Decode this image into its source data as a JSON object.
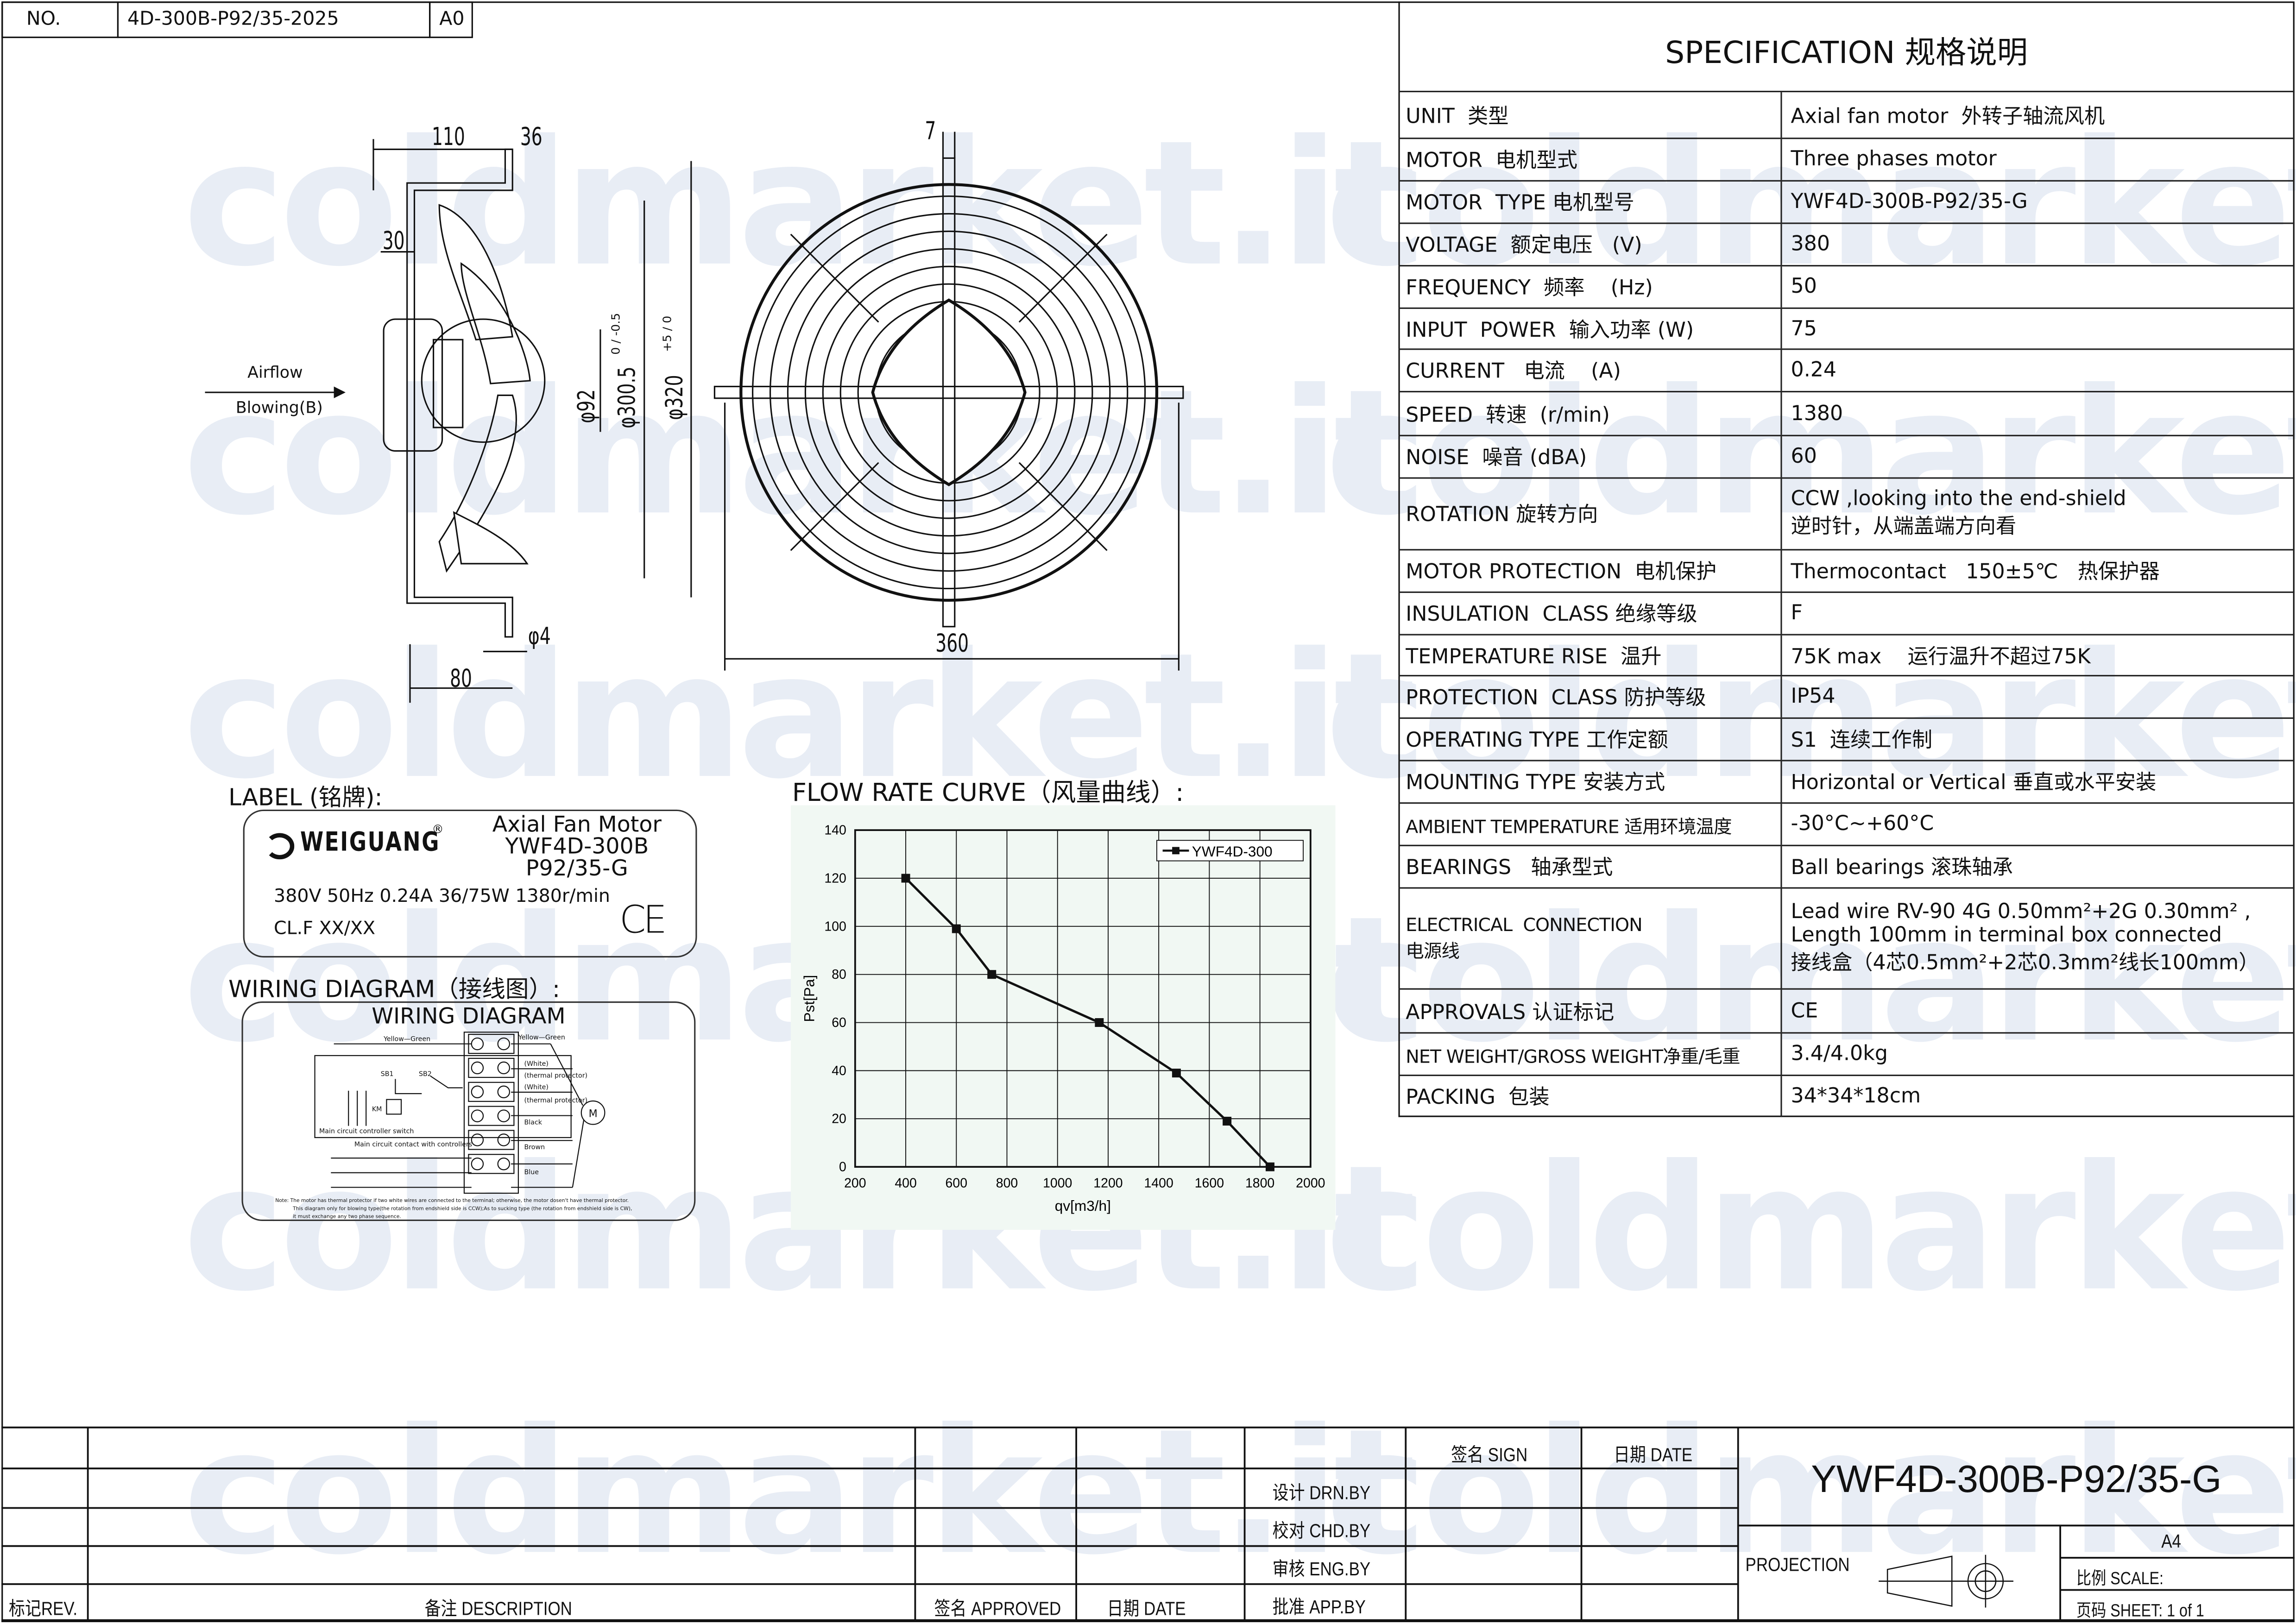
{
  "watermark": "coldmarket.it",
  "header": {
    "no_label": "NO.",
    "drawing_no": "4D-300B-P92/35-2025",
    "revision": "A0"
  },
  "spec": {
    "title": "SPECIFICATION 规格说明",
    "rows": [
      {
        "label": "UNIT  类型",
        "value": [
          "Axial fan motor  外转子轴流风机"
        ]
      },
      {
        "label": "MOTOR  电机型式",
        "value": [
          "Three phases motor"
        ]
      },
      {
        "label": "MOTOR  TYPE 电机型号",
        "value": [
          "YWF4D-300B-P92/35-G"
        ]
      },
      {
        "label": "VOLTAGE  额定电压   (V)",
        "value": [
          "380"
        ]
      },
      {
        "label": "FREQUENCY  频率    (Hz)",
        "value": [
          "50"
        ]
      },
      {
        "label": "INPUT  POWER  输入功率 (W)",
        "value": [
          "75"
        ]
      },
      {
        "label": "CURRENT   电流    (A)",
        "value": [
          "0.24"
        ]
      },
      {
        "label": "SPEED  转速  (r/min)",
        "value": [
          "1380"
        ]
      },
      {
        "label": "NOISE  噪音 (dBA)",
        "value": [
          "60"
        ]
      },
      {
        "label": "ROTATION 旋转方向",
        "value": [
          "CCW ,looking into the end-shield",
          "逆时针，从端盖端方向看"
        ]
      },
      {
        "label": "MOTOR PROTECTION  电机保护",
        "value": [
          "Thermocontact   150±5℃   热保护器"
        ]
      },
      {
        "label": "INSULATION  CLASS 绝缘等级",
        "value": [
          "F"
        ]
      },
      {
        "label": "TEMPERATURE RISE  温升",
        "value": [
          "75K max    运行温升不超过75K"
        ]
      },
      {
        "label": "PROTECTION  CLASS 防护等级",
        "value": [
          "IP54"
        ]
      },
      {
        "label": "OPERATING TYPE 工作定额",
        "value": [
          "S1  连续工作制"
        ]
      },
      {
        "label": "MOUNTING TYPE 安装方式",
        "value": [
          "Horizontal or Vertical 垂直或水平安装"
        ]
      },
      {
        "label": "AMBIENT TEMPERATURE 适用环境温度",
        "value": [
          "-30°C~+60°C"
        ]
      },
      {
        "label": "BEARINGS   轴承型式",
        "value": [
          "Ball bearings 滚珠轴承"
        ]
      },
      {
        "label": "ELECTRICAL  CONNECTION\n电源线",
        "value": [
          "Lead wire RV-90 4G 0.50mm²+2G 0.30mm² ,",
          "Length 100mm in terminal box connected",
          "接线盒（4芯0.5mm²+2芯0.3mm²线长100mm）"
        ]
      },
      {
        "label": "APPROVALS 认证标记",
        "value": [
          "CE"
        ]
      },
      {
        "label": "NET WEIGHT/GROSS WEIGHT净重/毛重",
        "value": [
          "3.4/4.0kg"
        ]
      },
      {
        "label": "PACKING  包装",
        "value": [
          "34*34*18cm"
        ]
      }
    ]
  },
  "drawing": {
    "side_dims": {
      "d110": "110",
      "d36": "36",
      "d30": "30",
      "d92": "φ92",
      "d300": "φ300.5",
      "d300_tol": "0 / -0.5",
      "d320": "φ320",
      "d320_tol": "+5 / 0",
      "d4": "φ4",
      "d80": "80"
    },
    "airflow": "Airflow",
    "blowing": "Blowing(B)",
    "front_dims": {
      "d7": "7",
      "d360": "360"
    }
  },
  "label_section": {
    "heading": "LABEL (铭牌):",
    "brand": "WEIGUANG",
    "registered": "®",
    "line1": "Axial Fan Motor",
    "line2": "YWF4D-300B",
    "line3": "P92/35-G",
    "ratings": "380V 50Hz 0.24A 36/75W 1380r/min",
    "class": "CL.F XX/XX",
    "ce": "CE"
  },
  "wiring": {
    "heading": "WIRING DIAGRAM（接线图）:",
    "title": "WIRING DIAGRAM",
    "left_yg": "Yellow—Green",
    "right_yg": "Yellow—Green",
    "white1": "(White)",
    "thermal1": "(thermal protector)",
    "white2": "(White)",
    "thermal2": "(thermal protector)",
    "black": "Black",
    "brown": "Brown",
    "blue": "Blue",
    "sb1": "SB1",
    "sb2": "SB2",
    "km": "KM",
    "motor": "M",
    "main_circuit": "Main circuit  controller switch",
    "main_contact": "Main circuit contact with controllers",
    "note": [
      "Note:  The motor has thermal protector if two white wires are connected to the terminal; otherwise, the motor dosen't have thermal protector.",
      "This diagram only for blowing type(the rotation from endshield side is CCW);As to sucking type (the rotation from endshield side is CW),",
      "it must exchange any two phase sequence."
    ]
  },
  "flow_section": {
    "heading": "FLOW RATE CURVE（风量曲线）:"
  },
  "chart_data": {
    "type": "line",
    "title": "",
    "xlabel": "qv[m3/h]",
    "ylabel": "Pst[Pa]",
    "xlim": [
      200,
      2000
    ],
    "ylim": [
      0,
      140
    ],
    "xticks": [
      200,
      400,
      600,
      800,
      1000,
      1200,
      1400,
      1600,
      1800,
      2000
    ],
    "yticks": [
      0,
      20,
      40,
      60,
      80,
      100,
      120,
      140
    ],
    "grid": true,
    "legend": "top-right",
    "background": "#f1f8f3",
    "series": [
      {
        "name": "YWF4D-300",
        "x": [
          400,
          600,
          740,
          1165,
          1470,
          1670,
          1840
        ],
        "y": [
          120,
          99,
          80,
          60,
          39,
          19,
          0
        ]
      }
    ]
  },
  "titleblock": {
    "rev": "标记REV.",
    "description": "备注 DESCRIPTION",
    "approved": "签名 APPROVED",
    "date_col": "日期 DATE",
    "sign": "签名 SIGN",
    "date": "日期 DATE",
    "drn": "设计 DRN.BY",
    "chd": "校对 CHD.BY",
    "eng": "审核 ENG.BY",
    "app": "批准 APP.BY",
    "model": "YWF4D-300B-P92/35-G",
    "projection": "PROJECTION",
    "paper": "A4",
    "scale": "比例 SCALE:",
    "sheet": "页码 SHEET:  1 of 1"
  }
}
